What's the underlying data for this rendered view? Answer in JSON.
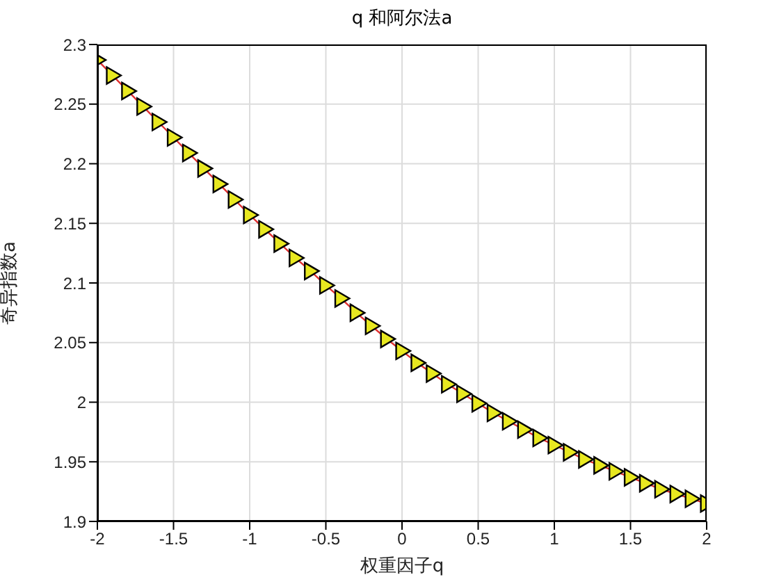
{
  "chart_data": {
    "type": "line",
    "title": "q 和阿尔法a",
    "xlabel": "权重因子q",
    "ylabel": "奇异指数a",
    "x": [
      -2,
      -1.9,
      -1.8,
      -1.7,
      -1.6,
      -1.5,
      -1.4,
      -1.3,
      -1.2,
      -1.1,
      -1,
      -0.9,
      -0.8,
      -0.7,
      -0.6,
      -0.5,
      -0.4,
      -0.3,
      -0.2,
      -0.1,
      0,
      0.1,
      0.2,
      0.3,
      0.4,
      0.5,
      0.6,
      0.7,
      0.8,
      0.9,
      1,
      1.1,
      1.2,
      1.3,
      1.4,
      1.5,
      1.6,
      1.7,
      1.8,
      1.9,
      2
    ],
    "series": [
      {
        "color": "#e03030",
        "values": [
          2.287,
          2.274,
          2.261,
          2.248,
          2.235,
          2.222,
          2.209,
          2.196,
          2.183,
          2.17,
          2.157,
          2.145,
          2.133,
          2.121,
          2.11,
          2.098,
          2.087,
          2.075,
          2.064,
          2.053,
          2.043,
          2.033,
          2.024,
          2.015,
          2.007,
          1.999,
          1.991,
          1.984,
          1.977,
          1.97,
          1.964,
          1.958,
          1.952,
          1.947,
          1.942,
          1.937,
          1.932,
          1.927,
          1.923,
          1.919,
          1.915
        ]
      }
    ],
    "xlim": [
      -2,
      2
    ],
    "xticks": [
      -2,
      -1.5,
      -1,
      -0.5,
      0,
      0.5,
      1,
      1.5,
      2
    ],
    "ylim": [
      1.9,
      2.3
    ],
    "yticks": [
      1.9,
      1.95,
      2,
      2.05,
      2.1,
      2.15,
      2.2,
      2.25,
      2.3
    ],
    "grid": true,
    "marker": "triangle",
    "line_style": "solid"
  }
}
